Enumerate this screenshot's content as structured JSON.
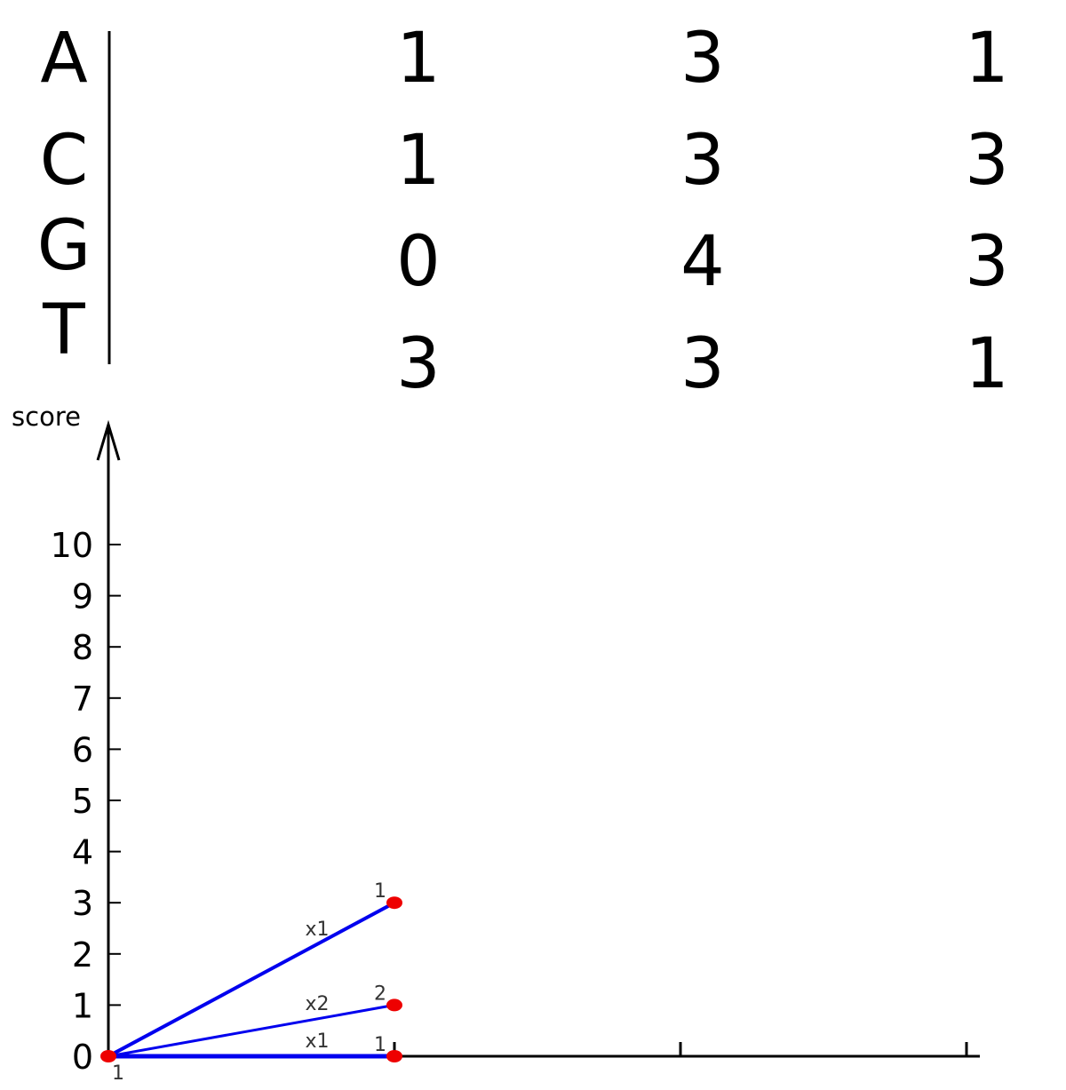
{
  "matrix": {
    "rows": [
      {
        "letter": "A",
        "values": [
          "1",
          "3",
          "1"
        ]
      },
      {
        "letter": "C",
        "values": [
          "1",
          "3",
          "3"
        ]
      },
      {
        "letter": "G",
        "values": [
          "0",
          "4",
          "3"
        ]
      },
      {
        "letter": "T",
        "values": [
          "3",
          "3",
          "1"
        ]
      }
    ]
  },
  "chart_data": {
    "type": "line",
    "ylabel": "score",
    "xlabel": "",
    "y_ticks": [
      "0",
      "1",
      "2",
      "3",
      "4",
      "5",
      "6",
      "7",
      "8",
      "9",
      "10"
    ],
    "x_ticks": [
      1,
      2,
      3
    ],
    "xlim": [
      0,
      3
    ],
    "ylim": [
      0,
      10
    ],
    "colors": {
      "edge": "#0000ee",
      "node": "#ee0000",
      "axis": "#000000",
      "label": "#333333"
    },
    "nodes": [
      {
        "x": 0,
        "y": 0,
        "count": "1"
      },
      {
        "x": 1,
        "y": 3,
        "count": "1"
      },
      {
        "x": 1,
        "y": 1,
        "count": "2"
      },
      {
        "x": 1,
        "y": 0,
        "count": "1"
      }
    ],
    "edges": [
      {
        "from": [
          0,
          0
        ],
        "to": [
          1,
          3
        ],
        "label": "x1"
      },
      {
        "from": [
          0,
          0
        ],
        "to": [
          1,
          1
        ],
        "label": "x2"
      },
      {
        "from": [
          0,
          0
        ],
        "to": [
          1,
          0
        ],
        "label": "x1"
      }
    ]
  }
}
